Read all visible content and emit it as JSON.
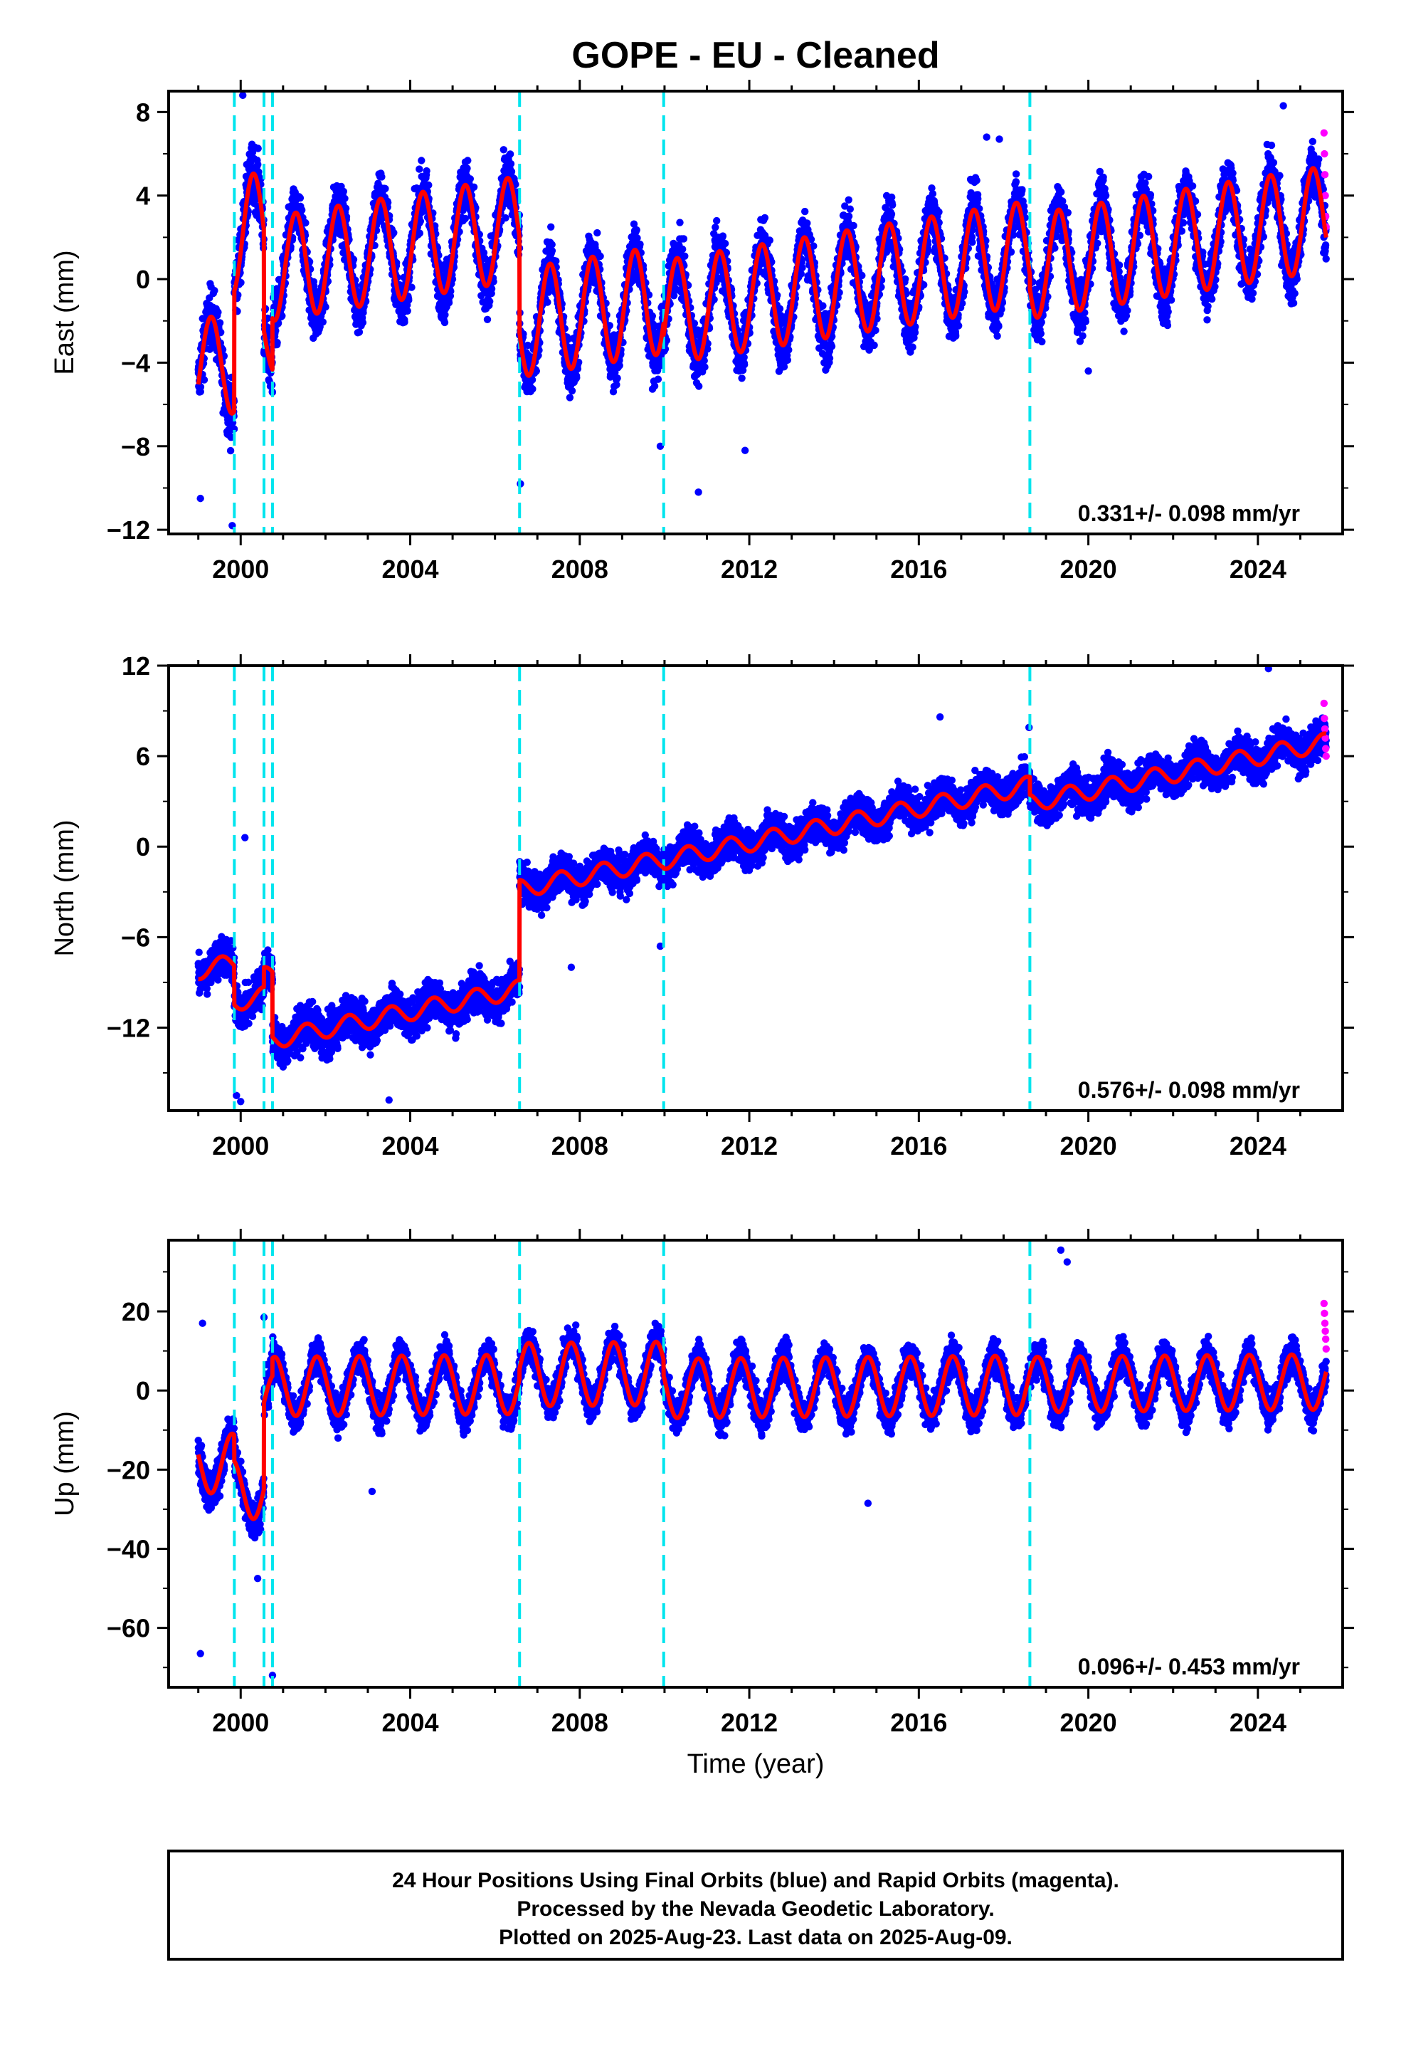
{
  "title": "GOPE  - EU - Cleaned",
  "xlabel": "Time (year)",
  "colors": {
    "final_points": "#0000ff",
    "rapid_points": "#ff00ff",
    "model": "#ff0000",
    "steps": "#00e5ee",
    "axis": "#000000"
  },
  "footer": {
    "line1": "24 Hour Positions Using Final Orbits (blue) and Rapid Orbits (magenta).",
    "line2": "Processed by the Nevada Geodetic Laboratory.",
    "line3": "Plotted on 2025-Aug-23. Last data on 2025-Aug-09."
  },
  "chart_data": [
    {
      "type": "scatter",
      "component": "East",
      "ylabel": "East (mm)",
      "xlim": [
        1998.3,
        2026.0
      ],
      "ylim": [
        -12.2,
        9.0
      ],
      "xticks": [
        2000,
        2004,
        2008,
        2012,
        2016,
        2020,
        2024
      ],
      "xtick_labels": [
        "2000",
        "2004",
        "2008",
        "2012",
        "2016",
        "2020",
        "2024"
      ],
      "yticks": [
        -12,
        -8,
        -4,
        0,
        4,
        8
      ],
      "ytick_labels": [
        "−12",
        "−8",
        "−4",
        "0",
        "4",
        "8"
      ],
      "rate_label": "0.331+/- 0.098 mm/yr",
      "step_epochs": [
        1999.85,
        2000.55,
        2000.75,
        2006.58,
        2009.98,
        2018.62
      ],
      "segments": [
        {
          "start": 1999.0,
          "end": 1999.85,
          "offset_start": -4.3,
          "rate": 0.331,
          "amp_annual": 2.4,
          "phase": 0.05,
          "scatter": 1.3
        },
        {
          "start": 1999.85,
          "end": 2000.55,
          "offset_start": 2.1,
          "rate": 0.331,
          "amp_annual": 2.8,
          "phase": 0.05,
          "scatter": 1.3
        },
        {
          "start": 2000.55,
          "end": 2000.75,
          "offset_start": -2.5,
          "rate": 0.331,
          "amp_annual": 2.0,
          "phase": 0.05,
          "scatter": 1.3
        },
        {
          "start": 2000.75,
          "end": 2006.58,
          "offset_start": 0.5,
          "rate": 0.331,
          "amp_annual": 2.5,
          "phase": 0.05,
          "scatter": 1.2
        },
        {
          "start": 2006.58,
          "end": 2009.98,
          "offset_start": -2.1,
          "rate": 0.331,
          "amp_annual": 2.6,
          "phase": 0.05,
          "scatter": 1.2
        },
        {
          "start": 2009.98,
          "end": 2018.62,
          "offset_start": -1.6,
          "rate": 0.331,
          "amp_annual": 2.5,
          "phase": 0.05,
          "scatter": 1.2
        },
        {
          "start": 2018.62,
          "end": 2025.61,
          "offset_start": 0.6,
          "rate": 0.331,
          "amp_annual": 2.5,
          "phase": 0.05,
          "scatter": 1.2
        }
      ],
      "rapid_points": [
        [
          2025.56,
          7.0
        ],
        [
          2025.57,
          6.0
        ],
        [
          2025.58,
          5.0
        ],
        [
          2025.59,
          4.0
        ],
        [
          2025.6,
          3.0
        ],
        [
          2025.61,
          2.5
        ]
      ],
      "outliers": [
        [
          2000.05,
          8.8
        ],
        [
          2009.9,
          -8.0
        ],
        [
          2011.9,
          -8.2
        ],
        [
          2010.8,
          -10.2
        ],
        [
          1999.8,
          -11.8
        ],
        [
          1999.05,
          -10.5
        ],
        [
          2006.6,
          -9.8
        ],
        [
          2020.0,
          -4.4
        ],
        [
          2017.9,
          6.7
        ],
        [
          2017.6,
          6.8
        ],
        [
          2024.6,
          8.3
        ]
      ]
    },
    {
      "type": "scatter",
      "component": "North",
      "ylabel": "North (mm)",
      "xlim": [
        1998.3,
        2026.0
      ],
      "ylim": [
        -17.5,
        12.0
      ],
      "xticks": [
        2000,
        2004,
        2008,
        2012,
        2016,
        2020,
        2024
      ],
      "xtick_labels": [
        "2000",
        "2004",
        "2008",
        "2012",
        "2016",
        "2020",
        "2024"
      ],
      "yticks": [
        -12,
        -6,
        0,
        6,
        12
      ],
      "ytick_labels": [
        "−12",
        "−6",
        "0",
        "6",
        "12"
      ],
      "rate_label": "0.576+/- 0.098 mm/yr",
      "step_epochs": [
        1999.85,
        2000.55,
        2000.75,
        2006.58,
        2009.98,
        2018.62
      ],
      "segments": [
        {
          "start": 1999.0,
          "end": 1999.85,
          "offset_start": -8.2,
          "rate": 0.576,
          "amp_annual": 0.6,
          "phase": 0.3,
          "scatter": 1.2
        },
        {
          "start": 1999.85,
          "end": 2000.55,
          "offset_start": -10.3,
          "rate": 0.576,
          "amp_annual": 0.6,
          "phase": 0.3,
          "scatter": 1.2
        },
        {
          "start": 2000.55,
          "end": 2000.75,
          "offset_start": -8.6,
          "rate": 0.576,
          "amp_annual": 0.6,
          "phase": 0.3,
          "scatter": 1.2
        },
        {
          "start": 2000.75,
          "end": 2006.58,
          "offset_start": -12.8,
          "rate": 0.576,
          "amp_annual": 0.6,
          "phase": 0.3,
          "scatter": 1.2
        },
        {
          "start": 2006.58,
          "end": 2009.98,
          "offset_start": -2.8,
          "rate": 0.576,
          "amp_annual": 0.6,
          "phase": 0.3,
          "scatter": 1.1
        },
        {
          "start": 2009.98,
          "end": 2018.62,
          "offset_start": -0.9,
          "rate": 0.576,
          "amp_annual": 0.6,
          "phase": 0.3,
          "scatter": 1.1
        },
        {
          "start": 2018.62,
          "end": 2025.61,
          "offset_start": 2.9,
          "rate": 0.576,
          "amp_annual": 0.6,
          "phase": 0.3,
          "scatter": 1.1
        }
      ],
      "rapid_points": [
        [
          2025.56,
          9.5
        ],
        [
          2025.57,
          8.5
        ],
        [
          2025.58,
          7.8
        ],
        [
          2025.59,
          7.2
        ],
        [
          2025.6,
          6.5
        ],
        [
          2025.61,
          6.0
        ]
      ],
      "outliers": [
        [
          2000.1,
          0.6
        ],
        [
          2007.8,
          -8.0
        ],
        [
          2009.9,
          -6.6
        ],
        [
          2024.25,
          11.8
        ],
        [
          2016.5,
          8.6
        ],
        [
          2018.6,
          7.9
        ],
        [
          1999.9,
          -16.5
        ],
        [
          2000.0,
          -16.9
        ],
        [
          2003.5,
          -16.8
        ]
      ]
    },
    {
      "type": "scatter",
      "component": "Up",
      "ylabel": "Up (mm)",
      "xlim": [
        1998.3,
        2026.0
      ],
      "ylim": [
        -75.0,
        38.0
      ],
      "xticks": [
        2000,
        2004,
        2008,
        2012,
        2016,
        2020,
        2024
      ],
      "xtick_labels": [
        "2000",
        "2004",
        "2008",
        "2012",
        "2016",
        "2020",
        "2024"
      ],
      "yticks": [
        -60,
        -40,
        -20,
        0,
        20
      ],
      "ytick_labels": [
        "−60",
        "−40",
        "−20",
        "0",
        "20"
      ],
      "rate_label": "0.096+/- 0.453 mm/yr",
      "step_epochs": [
        1999.85,
        2000.55,
        2000.75,
        2006.58,
        2009.98,
        2018.62
      ],
      "segments": [
        {
          "start": 1999.0,
          "end": 1999.85,
          "offset_start": -18.5,
          "rate": 0.096,
          "amp_annual": 7.5,
          "phase": 0.55,
          "scatter": 4.5
        },
        {
          "start": 1999.85,
          "end": 2000.55,
          "offset_start": -25.0,
          "rate": 0.096,
          "amp_annual": 7.5,
          "phase": 0.55,
          "scatter": 4.5
        },
        {
          "start": 2000.55,
          "end": 2000.75,
          "offset_start": -3.0,
          "rate": 0.096,
          "amp_annual": 7.0,
          "phase": 0.55,
          "scatter": 4.5
        },
        {
          "start": 2000.75,
          "end": 2006.58,
          "offset_start": 1.0,
          "rate": 0.096,
          "amp_annual": 7.5,
          "phase": 0.55,
          "scatter": 4.0
        },
        {
          "start": 2006.58,
          "end": 2009.98,
          "offset_start": 4.0,
          "rate": 0.096,
          "amp_annual": 8.0,
          "phase": 0.55,
          "scatter": 4.0
        },
        {
          "start": 2009.98,
          "end": 2018.62,
          "offset_start": 0.5,
          "rate": 0.096,
          "amp_annual": 7.5,
          "phase": 0.55,
          "scatter": 4.0
        },
        {
          "start": 2018.62,
          "end": 2025.61,
          "offset_start": 1.5,
          "rate": 0.096,
          "amp_annual": 7.0,
          "phase": 0.55,
          "scatter": 4.0
        }
      ],
      "rapid_points": [
        [
          2025.56,
          22.0
        ],
        [
          2025.57,
          19.5
        ],
        [
          2025.58,
          17.0
        ],
        [
          2025.59,
          15.0
        ],
        [
          2025.6,
          13.0
        ],
        [
          2025.61,
          10.5
        ]
      ],
      "outliers": [
        [
          1999.05,
          -66.5
        ],
        [
          2000.75,
          -72.0
        ],
        [
          2000.55,
          18.5
        ],
        [
          2019.35,
          35.5
        ],
        [
          2019.5,
          32.5
        ],
        [
          2014.8,
          -28.5
        ],
        [
          1999.1,
          17.0
        ],
        [
          2003.1,
          -25.5
        ],
        [
          2000.4,
          -47.5
        ]
      ]
    }
  ]
}
